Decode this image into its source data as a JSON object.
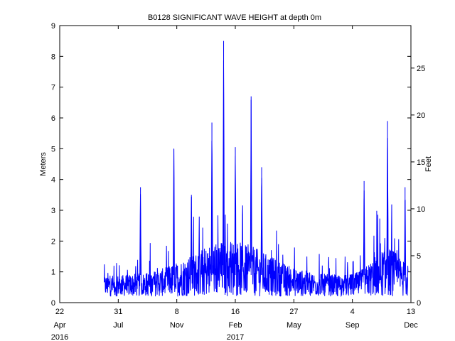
{
  "chart_data": {
    "type": "line",
    "title": "B0128 SIGNIFICANT WAVE HEIGHT at depth 0m",
    "ylabel": "Meters",
    "ylabel_right": "Feet",
    "ylim": [
      0,
      9
    ],
    "ylim_right": [
      0,
      29.53
    ],
    "y_ticks": [
      0,
      1,
      2,
      3,
      4,
      5,
      6,
      7,
      8,
      9
    ],
    "y_ticks_right": [
      0,
      5,
      10,
      15,
      20,
      25
    ],
    "x_ticks": [
      {
        "day": "22",
        "month": "Apr",
        "year": "2016"
      },
      {
        "day": "31",
        "month": "Jul",
        "year": ""
      },
      {
        "day": "8",
        "month": "Nov",
        "year": ""
      },
      {
        "day": "16",
        "month": "Feb",
        "year": "2017"
      },
      {
        "day": "27",
        "month": "May",
        "year": ""
      },
      {
        "day": "4",
        "month": "Sep",
        "year": ""
      },
      {
        "day": "13",
        "month": "Dec",
        "year": ""
      }
    ],
    "grid": false,
    "line_color": "#0000ff",
    "series": [
      {
        "x_ticks_span": [
          0,
          6
        ],
        "start_x": 0.76,
        "end_x": 5.95,
        "peaks": [
          {
            "x": 1.38,
            "y": 3.75
          },
          {
            "x": 1.95,
            "y": 5.0
          },
          {
            "x": 2.25,
            "y": 3.5
          },
          {
            "x": 2.6,
            "y": 5.85
          },
          {
            "x": 2.8,
            "y": 8.5
          },
          {
            "x": 3.0,
            "y": 5.05
          },
          {
            "x": 3.27,
            "y": 6.7
          },
          {
            "x": 3.45,
            "y": 4.4
          },
          {
            "x": 5.2,
            "y": 3.95
          },
          {
            "x": 5.6,
            "y": 5.9
          },
          {
            "x": 5.9,
            "y": 3.75
          }
        ],
        "baseline_range": [
          0.2,
          1.6
        ]
      }
    ]
  }
}
